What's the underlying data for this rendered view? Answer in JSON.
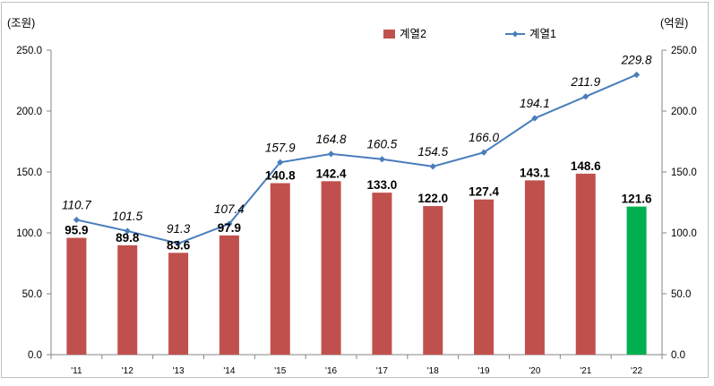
{
  "chart_data": {
    "type": "bar",
    "categories": [
      "'11",
      "'12",
      "'13",
      "'14",
      "'15",
      "'16",
      "'17",
      "'18",
      "'19",
      "'20",
      "'21",
      "'22"
    ],
    "series": [
      {
        "name": "계열2",
        "kind": "bar",
        "axis": "left",
        "values": [
          95.9,
          89.8,
          83.6,
          97.9,
          140.8,
          142.4,
          133.0,
          122.0,
          127.4,
          143.1,
          148.6,
          121.6
        ],
        "labels": [
          "95.9",
          "89.8",
          "83.6",
          "97.9",
          "140.8",
          "142.4",
          "133.0",
          "122.0",
          "127.4",
          "143.1",
          "148.6",
          "121.6"
        ],
        "color": "#c0504d",
        "highlight_index": 11,
        "highlight_color": "#00b050"
      },
      {
        "name": "계열1",
        "kind": "line",
        "axis": "right",
        "values": [
          110.7,
          101.5,
          91.3,
          107.4,
          157.9,
          164.8,
          160.5,
          154.5,
          166.0,
          194.1,
          211.9,
          229.8
        ],
        "labels": [
          "110.7",
          "101.5",
          "91.3",
          "107.4",
          "157.9",
          "164.8",
          "160.5",
          "154.5",
          "166.0",
          "194.1",
          "211.9",
          "229.8"
        ],
        "color": "#4a7ebb"
      }
    ],
    "y_left": {
      "unit_label": "(조원)",
      "ylim": [
        0,
        250
      ],
      "ticks": [
        "0.0",
        "50.0",
        "100.0",
        "150.0",
        "200.0",
        "250.0"
      ]
    },
    "y_right": {
      "unit_label": "(억원)",
      "ylim": [
        0,
        250
      ],
      "ticks": [
        "0.0",
        "50.0",
        "100.0",
        "150.0",
        "200.0",
        "250.0"
      ]
    },
    "legend": {
      "position": "top-right",
      "items": [
        "계열2",
        "계열1"
      ]
    },
    "grid": false
  }
}
